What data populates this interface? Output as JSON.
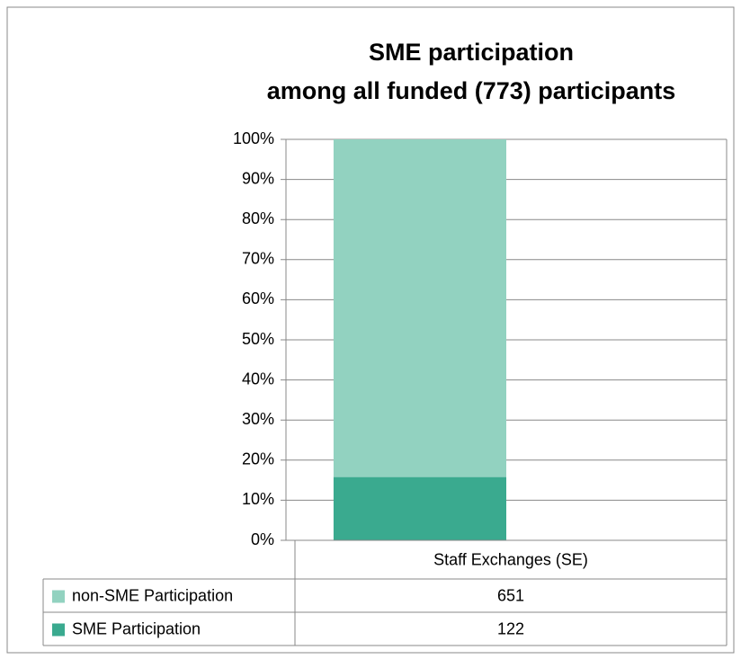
{
  "chart_data": {
    "type": "bar",
    "stacked": "percent",
    "title": [
      "SME participation",
      "among all funded (773) participants"
    ],
    "categories": [
      "Staff Exchanges (SE)"
    ],
    "series": [
      {
        "name": "SME Participation",
        "color": "#3aaa8f",
        "values": [
          122
        ]
      },
      {
        "name": "non-SME Participation",
        "color": "#92d2c0",
        "values": [
          651
        ]
      }
    ],
    "ylim": [
      0,
      100
    ],
    "yticks": [
      {
        "value": 0,
        "label": "0%"
      },
      {
        "value": 10,
        "label": "10%"
      },
      {
        "value": 20,
        "label": "20%"
      },
      {
        "value": 30,
        "label": "30%"
      },
      {
        "value": 40,
        "label": "40%"
      },
      {
        "value": 50,
        "label": "50%"
      },
      {
        "value": 60,
        "label": "60%"
      },
      {
        "value": 70,
        "label": "70%"
      },
      {
        "value": 80,
        "label": "80%"
      },
      {
        "value": 90,
        "label": "90%"
      },
      {
        "value": 100,
        "label": "100%"
      }
    ],
    "grid": true,
    "data_table": true
  }
}
